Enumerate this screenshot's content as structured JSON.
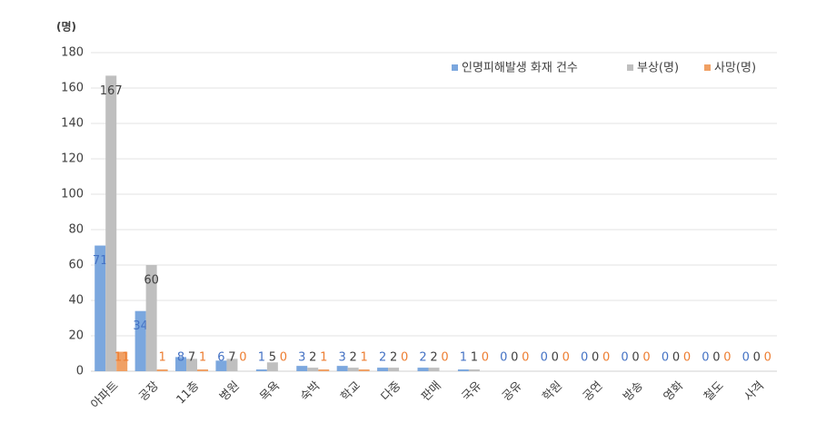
{
  "chart_data": {
    "type": "bar",
    "y_label": "(명)",
    "categories": [
      "아파트",
      "공장",
      "11층",
      "병원",
      "목욕",
      "숙박",
      "학교",
      "다중",
      "판매",
      "국유",
      "공유",
      "학원",
      "공연",
      "방송",
      "영화",
      "철도",
      "사격"
    ],
    "series": [
      {
        "name": "인명피해발생 화재 건수",
        "color": "#7ba7de",
        "values": [
          71,
          34,
          8,
          6,
          1,
          3,
          3,
          2,
          2,
          1,
          0,
          0,
          0,
          0,
          0,
          0,
          0
        ]
      },
      {
        "name": "부상(명)",
        "color": "#bfbfbf",
        "values": [
          167,
          60,
          7,
          7,
          5,
          2,
          2,
          2,
          2,
          1,
          0,
          0,
          0,
          0,
          0,
          0,
          0
        ]
      },
      {
        "name": "사망(명)",
        "color": "#f0a064",
        "values": [
          11,
          1,
          1,
          0,
          0,
          1,
          1,
          0,
          0,
          0,
          0,
          0,
          0,
          0,
          0,
          0,
          0
        ]
      }
    ],
    "ylim": [
      0,
      180
    ],
    "yticks": [
      0,
      20,
      40,
      60,
      80,
      100,
      120,
      140,
      160,
      180
    ],
    "grid": true,
    "legend": "top-right"
  }
}
